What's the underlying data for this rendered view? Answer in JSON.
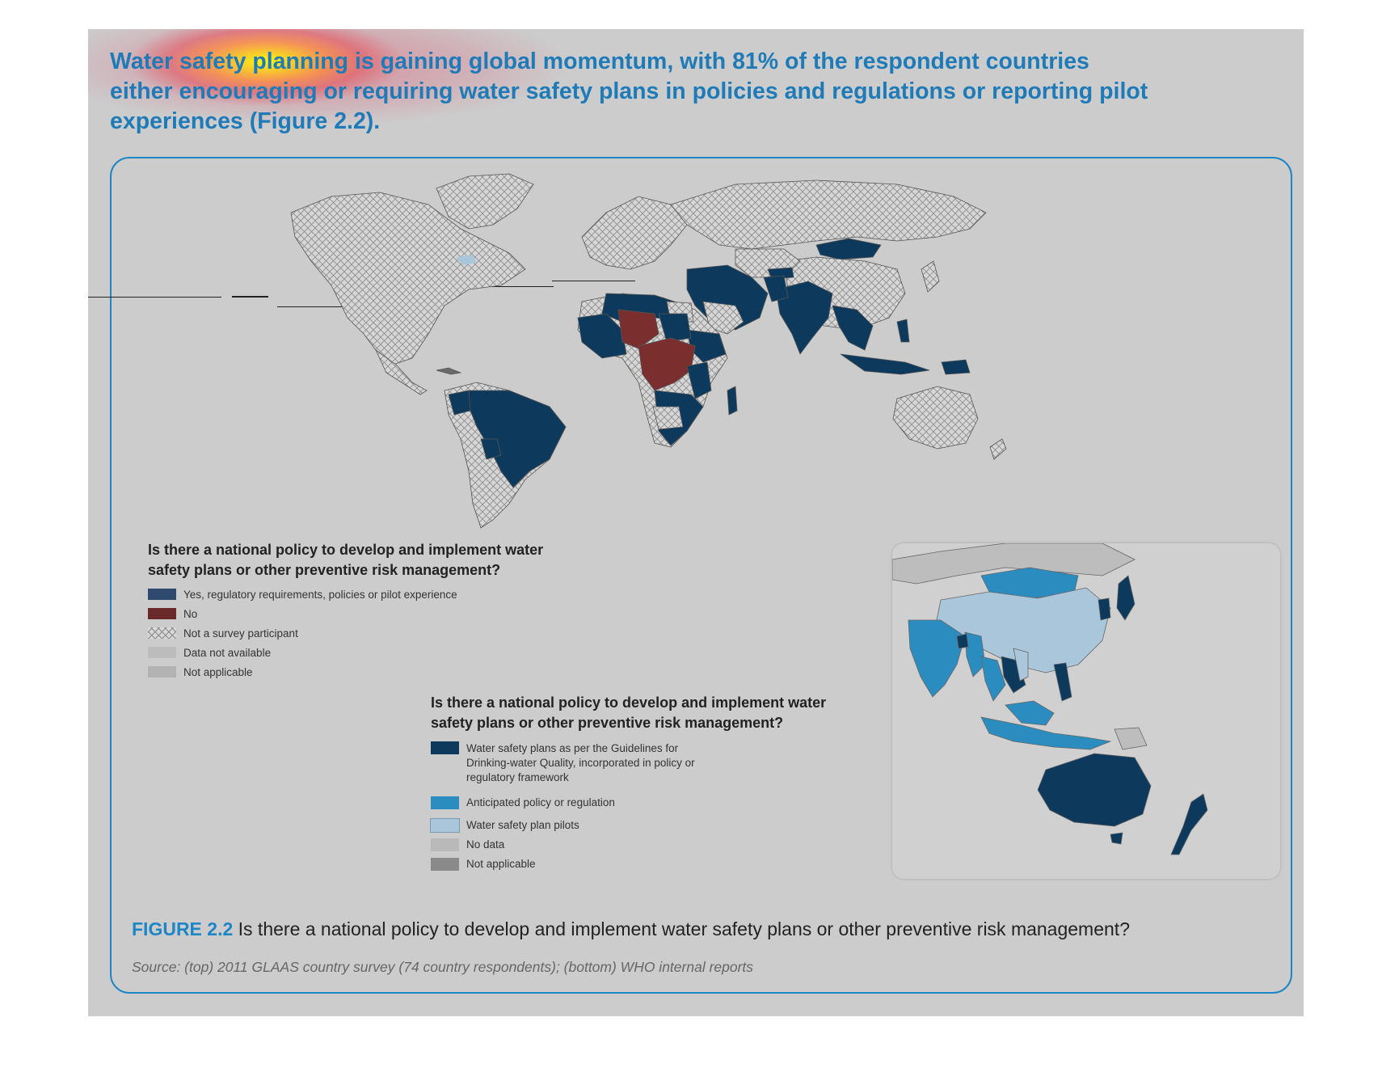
{
  "intro": {
    "line1": "Water safety planning is gaining global momentum, with 81% of the respondent countries",
    "line2": "either encouraging or requiring water safety plans in policies and regulations or reporting pilot",
    "line3": "experiences (Figure 2.2)."
  },
  "legend_top": {
    "title_line1": "Is there a national policy to develop and implement water",
    "title_line2": "safety plans or other preventive risk management?",
    "items": [
      {
        "label": "Yes, regulatory requirements, policies or pilot experience",
        "color": "#2f4a6e"
      },
      {
        "label": "No",
        "color": "#6b2a2a"
      },
      {
        "label": "Not a survey participant",
        "color": "hatch"
      },
      {
        "label": "Data not available",
        "color": "#bdbdbd"
      },
      {
        "label": "Not applicable",
        "color": "#b3b3b3"
      }
    ]
  },
  "legend_bottom": {
    "title_line1": "Is there a national policy to develop and implement water",
    "title_line2": "safety plans or other preventive risk management?",
    "items": [
      {
        "label": "Water safety plans as per the Guidelines for Drinking-water Quality, incorporated in policy or regulatory framework",
        "color": "#0d3a5c"
      },
      {
        "label": "Anticipated policy or regulation",
        "color": "#2b8cc0"
      },
      {
        "label": "Water safety plan pilots",
        "color": "#a9c6da"
      },
      {
        "label": "No data",
        "color": "#b9b9b9"
      },
      {
        "label": "Not applicable",
        "color": "#8a8a8a"
      }
    ]
  },
  "caption": {
    "figure_label": "FIGURE 2.2",
    "text": " Is there a national policy to develop and implement water safety plans or other preventive risk management?"
  },
  "source": "Source: (top) 2011 GLAAS country survey (74 country respondents); (bottom) WHO internal reports",
  "colors": {
    "page_bg": "#cccccc",
    "accent_blue": "#1f86c6",
    "yes_navy": "#0d3a5c",
    "no_maroon": "#7a2e2e",
    "hatch_land": "#d6d6d6"
  }
}
